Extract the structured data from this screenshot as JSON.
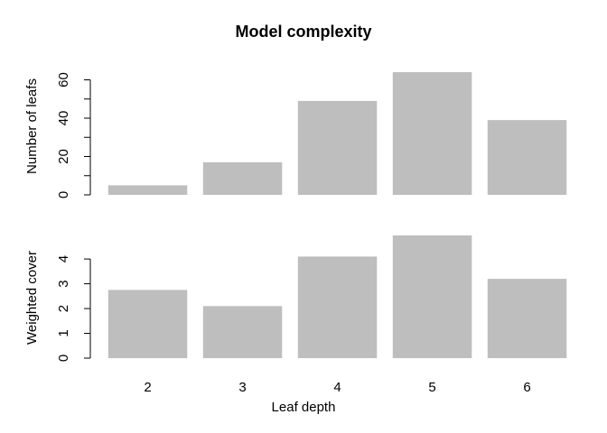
{
  "chart_data": {
    "type": "bar",
    "title": "Model complexity",
    "xlabel": "Leaf depth",
    "categories": [
      "2",
      "3",
      "4",
      "5",
      "6"
    ],
    "bar_color": "#bebebe",
    "panels": [
      {
        "ylabel": "Number of leafs",
        "values": [
          5,
          17,
          49,
          64,
          39
        ],
        "ylim": [
          0,
          64
        ],
        "yticks": [
          0,
          20,
          40,
          60
        ],
        "minor_ticks": [
          10,
          30,
          50
        ]
      },
      {
        "ylabel": "Weighted cover",
        "values": [
          2.75,
          2.1,
          4.1,
          4.95,
          3.2
        ],
        "ylim": [
          0,
          4.95
        ],
        "yticks": [
          0,
          1,
          2,
          3,
          4
        ]
      }
    ]
  }
}
